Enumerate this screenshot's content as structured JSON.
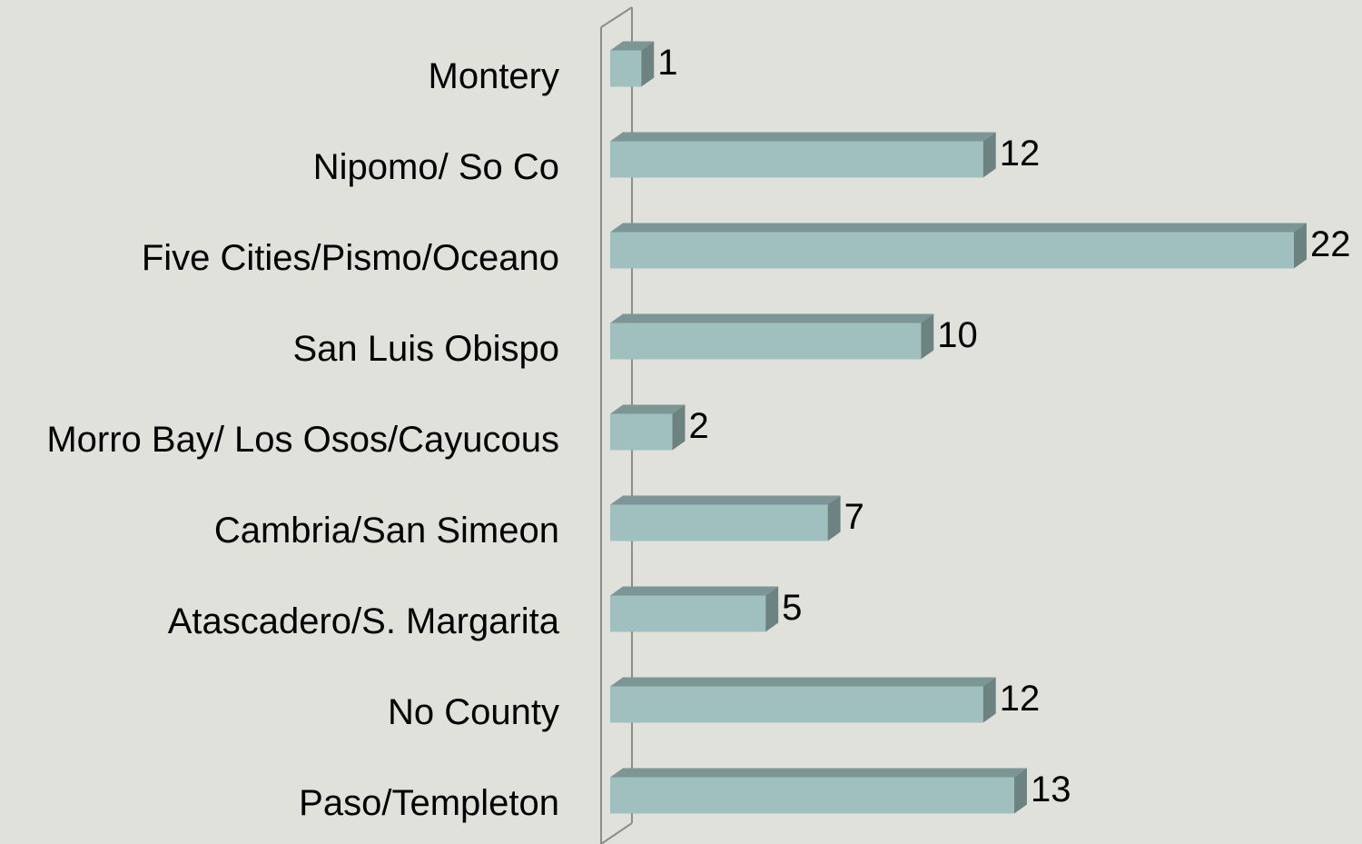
{
  "chart_data": {
    "type": "bar",
    "orientation": "horizontal",
    "three_d": true,
    "categories": [
      "Montery",
      "Nipomo/ So Co",
      "Five Cities/Pismo/Oceano",
      "San Luis Obispo",
      "Morro Bay/ Los Osos/Cayucous",
      "Cambria/San Simeon",
      "Atascadero/S. Margarita",
      "No County",
      "Paso/Templeton"
    ],
    "values": [
      1,
      12,
      22,
      10,
      2,
      7,
      5,
      12,
      13
    ],
    "color": "#9fc0bf"
  }
}
